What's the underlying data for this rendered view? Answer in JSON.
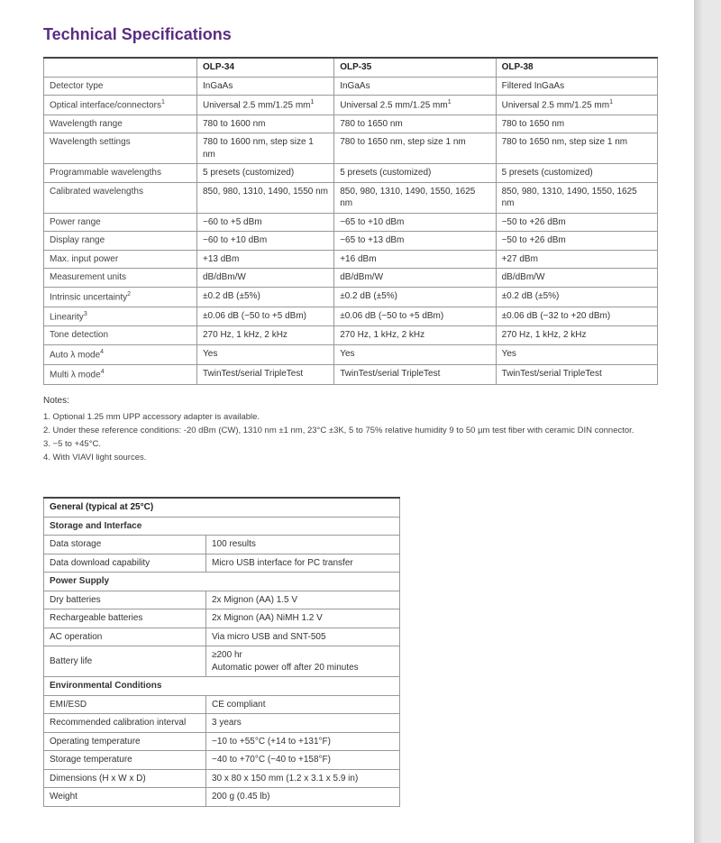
{
  "title": "Technical Specifications",
  "spec": {
    "headers": [
      "",
      "OLP-34",
      "OLP-35",
      "OLP-38"
    ],
    "rows": [
      {
        "label": "Detector type",
        "c": [
          "InGaAs",
          "InGaAs",
          "Filtered InGaAs"
        ]
      },
      {
        "label": "Optical interface/connectors",
        "sup": "1",
        "c": [
          "Universal 2.5 mm/1.25 mm",
          "Universal 2.5 mm/1.25 mm",
          "Universal 2.5 mm/1.25 mm"
        ],
        "cellsup": true
      },
      {
        "label": "Wavelength range",
        "c": [
          "780 to 1600 nm",
          "780 to 1650 nm",
          "780 to 1650 nm"
        ]
      },
      {
        "label": "Wavelength settings",
        "c": [
          "780 to 1600 nm, step size 1 nm",
          "780 to 1650 nm, step size 1 nm",
          "780 to 1650 nm, step size 1 nm"
        ]
      },
      {
        "label": "Programmable wavelengths",
        "c": [
          "5 presets (customized)",
          "5 presets (customized)",
          "5 presets (customized)"
        ]
      },
      {
        "label": "Calibrated wavelengths",
        "c": [
          "850, 980, 1310, 1490, 1550 nm",
          "850, 980, 1310, 1490, 1550, 1625 nm",
          "850, 980, 1310, 1490, 1550, 1625 nm"
        ]
      },
      {
        "label": "Power range",
        "c": [
          "−60 to +5 dBm",
          "−65 to +10 dBm",
          "−50 to +26 dBm"
        ]
      },
      {
        "label": "Display range",
        "c": [
          "−60 to +10 dBm",
          "−65 to +13 dBm",
          "−50 to +26 dBm"
        ]
      },
      {
        "label": "Max. input power",
        "c": [
          "+13 dBm",
          "+16 dBm",
          "+27 dBm"
        ]
      },
      {
        "label": "Measurement units",
        "c": [
          "dB/dBm/W",
          "dB/dBm/W",
          "dB/dBm/W"
        ]
      },
      {
        "label": "Intrinsic uncertainty",
        "sup": "2",
        "c": [
          "±0.2 dB (±5%)",
          "±0.2 dB (±5%)",
          "±0.2 dB (±5%)"
        ]
      },
      {
        "label": "Linearity",
        "sup": "3",
        "c": [
          "±0.06 dB (−50 to +5 dBm)",
          "±0.06 dB (−50 to +5 dBm)",
          "±0.06 dB (−32 to +20 dBm)"
        ]
      },
      {
        "label": "Tone detection",
        "c": [
          "270 Hz, 1 kHz, 2 kHz",
          "270 Hz, 1 kHz, 2 kHz",
          "270 Hz, 1 kHz, 2 kHz"
        ]
      },
      {
        "label": "Auto λ mode",
        "sup": "4",
        "c": [
          "Yes",
          "Yes",
          "Yes"
        ]
      },
      {
        "label": "Multi λ mode",
        "sup": "4",
        "c": [
          "TwinTest/serial TripleTest",
          "TwinTest/serial TripleTest",
          "TwinTest/serial TripleTest"
        ]
      }
    ]
  },
  "notes": {
    "label": "Notes:",
    "items": [
      "1. Optional 1.25 mm UPP accessory adapter is available.",
      "2. Under these reference conditions: -20 dBm (CW), 1310 nm ±1 nm, 23°C ±3K, 5 to 75% relative humidity 9 to 50 µm test fiber with ceramic DIN connector.",
      "3. −5 to +45°C.",
      "4. With VIAVI light sources."
    ]
  },
  "general": {
    "title": "General (typical at 25°C)",
    "sections": [
      {
        "heading": "Storage and Interface",
        "rows": [
          {
            "label": "Data storage",
            "value": "100 results"
          },
          {
            "label": "Data download capability",
            "value": "Micro USB interface for PC transfer"
          }
        ]
      },
      {
        "heading": "Power Supply",
        "rows": [
          {
            "label": "Dry batteries",
            "value": "2x Mignon (AA) 1.5 V"
          },
          {
            "label": "Rechargeable batteries",
            "value": "2x Mignon (AA) NiMH 1.2 V"
          },
          {
            "label": "AC operation",
            "value": "Via micro USB and SNT-505"
          },
          {
            "label": "Battery life",
            "value": "≥200 hr\nAutomatic power off after 20 minutes"
          }
        ]
      },
      {
        "heading": "Environmental Conditions",
        "rows": [
          {
            "label": "EMI/ESD",
            "value": "CE compliant"
          },
          {
            "label": "Recommended calibration interval",
            "value": "3 years"
          },
          {
            "label": "Operating temperature",
            "value": "−10 to +55°C (+14 to +131°F)"
          },
          {
            "label": "Storage temperature",
            "value": "−40 to +70°C (−40 to +158°F)"
          },
          {
            "label": "Dimensions (H x W x D)",
            "value": "30 x 80 x 150 mm (1.2 x 3.1 x 5.9 in)"
          },
          {
            "label": "Weight",
            "value": "200 g (0.45 lb)"
          }
        ]
      }
    ]
  }
}
